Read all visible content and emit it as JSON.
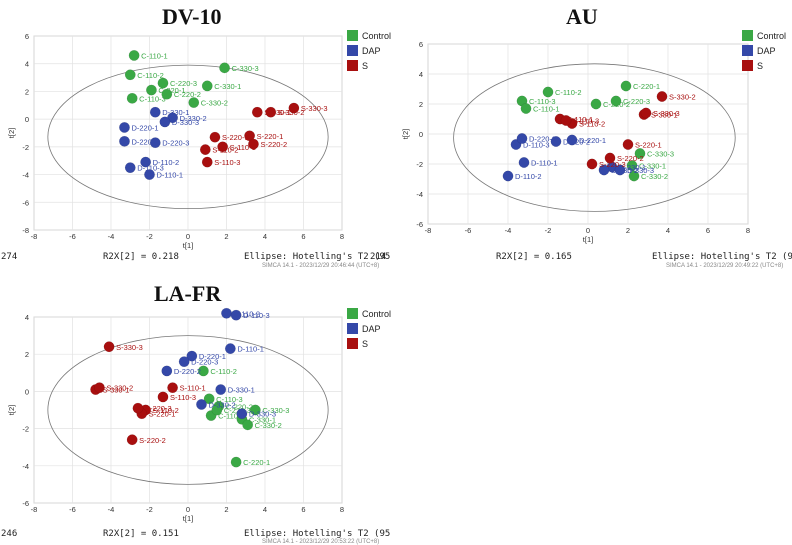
{
  "legend": [
    {
      "name": "Control",
      "color": "#3aa845"
    },
    {
      "name": "DAP",
      "color": "#3448a8"
    },
    {
      "name": "S",
      "color": "#a80f0f"
    }
  ],
  "chart_data": [
    {
      "type": "scatter",
      "title": "DV-10",
      "xlabel": "t[1]",
      "ylabel": "t[2]",
      "xlim": [
        -8,
        8
      ],
      "ylim": [
        -8,
        6
      ],
      "xticks": [
        -8,
        -6,
        -4,
        -2,
        0,
        2,
        4,
        6,
        8
      ],
      "yticks": [
        -8,
        -6,
        -4,
        -2,
        0,
        2,
        4,
        6
      ],
      "grid": true,
      "left_fragment": "274",
      "r2x": "R2X[2] = 0.218",
      "ellipse_label": "Ellipse: Hotelling's T2 (95",
      "right_fragment": "214",
      "software": "SIMCA 14.1 - 2023/12/29 20:46:44 (UTC+8)",
      "series": [
        {
          "name": "Control",
          "points": [
            {
              "x": -2.8,
              "y": 4.6,
              "label": "C-110-1"
            },
            {
              "x": -3.0,
              "y": 3.2,
              "label": "C-110-2"
            },
            {
              "x": -2.9,
              "y": 1.5,
              "label": "C-110-3"
            },
            {
              "x": -1.9,
              "y": 2.1,
              "label": "C-220-1"
            },
            {
              "x": -1.1,
              "y": 1.8,
              "label": "C-220-2"
            },
            {
              "x": -1.3,
              "y": 2.6,
              "label": "C-220-3"
            },
            {
              "x": 1.0,
              "y": 2.4,
              "label": "C-330-1"
            },
            {
              "x": 0.3,
              "y": 1.2,
              "label": "C-330-2"
            },
            {
              "x": 1.9,
              "y": 3.7,
              "label": "C-330-3"
            }
          ]
        },
        {
          "name": "DAP",
          "points": [
            {
              "x": -2.0,
              "y": -4.0,
              "label": "D-110-1"
            },
            {
              "x": -2.2,
              "y": -3.1,
              "label": "D-110-2"
            },
            {
              "x": -3.0,
              "y": -3.5,
              "label": "D-110-3"
            },
            {
              "x": -3.3,
              "y": -0.6,
              "label": "D-220-1"
            },
            {
              "x": -3.3,
              "y": -1.6,
              "label": "D-220-2"
            },
            {
              "x": -1.7,
              "y": -1.7,
              "label": "D-220-3"
            },
            {
              "x": -1.7,
              "y": 0.5,
              "label": "D-330-1"
            },
            {
              "x": -0.8,
              "y": 0.1,
              "label": "D-330-2"
            },
            {
              "x": -1.2,
              "y": -0.2,
              "label": "D-330-3"
            }
          ]
        },
        {
          "name": "S",
          "points": [
            {
              "x": 1.8,
              "y": -2.0,
              "label": "S-110-1"
            },
            {
              "x": 0.9,
              "y": -2.2,
              "label": "S-110-2"
            },
            {
              "x": 1.0,
              "y": -3.1,
              "label": "S-110-3"
            },
            {
              "x": 3.2,
              "y": -1.2,
              "label": "S-220-1"
            },
            {
              "x": 3.4,
              "y": -1.8,
              "label": "S-220-2"
            },
            {
              "x": 1.4,
              "y": -1.3,
              "label": "S-220-3"
            },
            {
              "x": 3.6,
              "y": 0.5,
              "label": "S-330-1"
            },
            {
              "x": 4.3,
              "y": 0.5,
              "label": "S-330-2"
            },
            {
              "x": 5.5,
              "y": 0.8,
              "label": "S-330-3"
            }
          ]
        }
      ]
    },
    {
      "type": "scatter",
      "title": "AU",
      "xlabel": "t[1]",
      "ylabel": "t[2]",
      "xlim": [
        -8,
        8
      ],
      "ylim": [
        -6,
        6
      ],
      "xticks": [
        -8,
        -6,
        -4,
        -2,
        0,
        2,
        4,
        6,
        8
      ],
      "yticks": [
        -6,
        -4,
        -2,
        0,
        2,
        4,
        6
      ],
      "grid": true,
      "r2x": "R2X[2] = 0.165",
      "ellipse_label": "Ellipse: Hotelling's T2 (95",
      "software": "SIMCA 14.1 - 2023/12/29 20:49:22 (UTC+8)",
      "series": [
        {
          "name": "Control",
          "points": [
            {
              "x": -2.0,
              "y": 2.8,
              "label": "C-110-2"
            },
            {
              "x": -3.3,
              "y": 2.2,
              "label": "C-110-3"
            },
            {
              "x": -3.1,
              "y": 1.7,
              "label": "C-110-1"
            },
            {
              "x": 0.4,
              "y": 2.0,
              "label": "C-220-2"
            },
            {
              "x": 1.9,
              "y": 3.2,
              "label": "C-220-1"
            },
            {
              "x": 1.4,
              "y": 2.2,
              "label": "C-220-3"
            },
            {
              "x": 2.6,
              "y": -1.3,
              "label": "C-330-3"
            },
            {
              "x": 2.2,
              "y": -2.1,
              "label": "C-330-1"
            },
            {
              "x": 2.3,
              "y": -2.8,
              "label": "C-330-2"
            }
          ]
        },
        {
          "name": "DAP",
          "points": [
            {
              "x": -3.2,
              "y": -1.9,
              "label": "D-110-1"
            },
            {
              "x": -4.0,
              "y": -2.8,
              "label": "D-110-2"
            },
            {
              "x": -3.6,
              "y": -0.7,
              "label": "D-110-3"
            },
            {
              "x": -0.8,
              "y": -0.4,
              "label": "D-220-1"
            },
            {
              "x": -1.6,
              "y": -0.5,
              "label": "D-220-2"
            },
            {
              "x": -3.3,
              "y": -0.3,
              "label": "D-220-3"
            },
            {
              "x": 1.2,
              "y": -2.2,
              "label": "D-330-1"
            },
            {
              "x": 0.8,
              "y": -2.4,
              "label": "D-330-2"
            },
            {
              "x": 1.6,
              "y": -2.4,
              "label": "D-330-3"
            }
          ]
        },
        {
          "name": "S",
          "points": [
            {
              "x": -1.4,
              "y": 1.0,
              "label": "S-110-1"
            },
            {
              "x": -0.8,
              "y": 0.7,
              "label": "S-110-2"
            },
            {
              "x": -1.1,
              "y": 0.9,
              "label": "S-110-3"
            },
            {
              "x": 2.0,
              "y": -0.7,
              "label": "S-220-1"
            },
            {
              "x": 1.1,
              "y": -1.6,
              "label": "S-220-2"
            },
            {
              "x": 0.2,
              "y": -2.0,
              "label": "S-220-3"
            },
            {
              "x": 2.8,
              "y": 1.3,
              "label": "S-330-1"
            },
            {
              "x": 3.7,
              "y": 2.5,
              "label": "S-330-2"
            },
            {
              "x": 2.9,
              "y": 1.4,
              "label": "S-330-3"
            }
          ]
        }
      ]
    },
    {
      "type": "scatter",
      "title": "LA-FR",
      "xlabel": "t[1]",
      "ylabel": "t[2]",
      "xlim": [
        -8,
        8
      ],
      "ylim": [
        -6,
        4
      ],
      "xticks": [
        -8,
        -6,
        -4,
        -2,
        0,
        2,
        4,
        6,
        8
      ],
      "yticks": [
        -6,
        -4,
        -2,
        0,
        2,
        4
      ],
      "grid": true,
      "left_fragment": "246",
      "r2x": "R2X[2] = 0.151",
      "ellipse_label": "Ellipse: Hotelling's T2 (95",
      "software": "SIMCA 14.1 - 2023/12/29 20:53:22 (UTC+8)",
      "series": [
        {
          "name": "Control",
          "points": [
            {
              "x": 1.2,
              "y": -1.3,
              "label": "C-110-1"
            },
            {
              "x": 0.8,
              "y": 1.1,
              "label": "C-110-2"
            },
            {
              "x": 1.1,
              "y": -0.4,
              "label": "C-110-3"
            },
            {
              "x": 2.5,
              "y": -3.8,
              "label": "C-220-1"
            },
            {
              "x": 1.6,
              "y": -0.8,
              "label": "C-220-2"
            },
            {
              "x": 1.5,
              "y": -1.0,
              "label": "C-220-3"
            },
            {
              "x": 2.8,
              "y": -1.5,
              "label": "C-330-1"
            },
            {
              "x": 3.1,
              "y": -1.8,
              "label": "C-330-2"
            },
            {
              "x": 3.5,
              "y": -1.0,
              "label": "C-330-3"
            }
          ]
        },
        {
          "name": "DAP",
          "points": [
            {
              "x": 2.2,
              "y": 2.3,
              "label": "D-110-1"
            },
            {
              "x": 2.0,
              "y": 4.2,
              "label": "D-110-2"
            },
            {
              "x": 2.5,
              "y": 4.1,
              "label": "D-110-3"
            },
            {
              "x": 0.2,
              "y": 1.9,
              "label": "D-220-1"
            },
            {
              "x": -1.1,
              "y": 1.1,
              "label": "D-220-2"
            },
            {
              "x": -0.2,
              "y": 1.6,
              "label": "D-220-3"
            },
            {
              "x": 1.7,
              "y": 0.1,
              "label": "D-330-1"
            },
            {
              "x": 0.7,
              "y": -0.7,
              "label": "D-330-2"
            },
            {
              "x": 2.8,
              "y": -1.2,
              "label": "D-330-3"
            }
          ]
        },
        {
          "name": "S",
          "points": [
            {
              "x": -0.8,
              "y": 0.2,
              "label": "S-110-1"
            },
            {
              "x": -2.2,
              "y": -1.0,
              "label": "S-110-2"
            },
            {
              "x": -1.3,
              "y": -0.3,
              "label": "S-110-3"
            },
            {
              "x": -2.4,
              "y": -1.2,
              "label": "S-220-1"
            },
            {
              "x": -2.9,
              "y": -2.6,
              "label": "S-220-2"
            },
            {
              "x": -2.6,
              "y": -0.9,
              "label": "S-220-3"
            },
            {
              "x": -4.8,
              "y": 0.1,
              "label": "S-330-1"
            },
            {
              "x": -4.6,
              "y": 0.2,
              "label": "S-330-2"
            },
            {
              "x": -4.1,
              "y": 2.4,
              "label": "S-330-3"
            }
          ]
        }
      ]
    }
  ]
}
